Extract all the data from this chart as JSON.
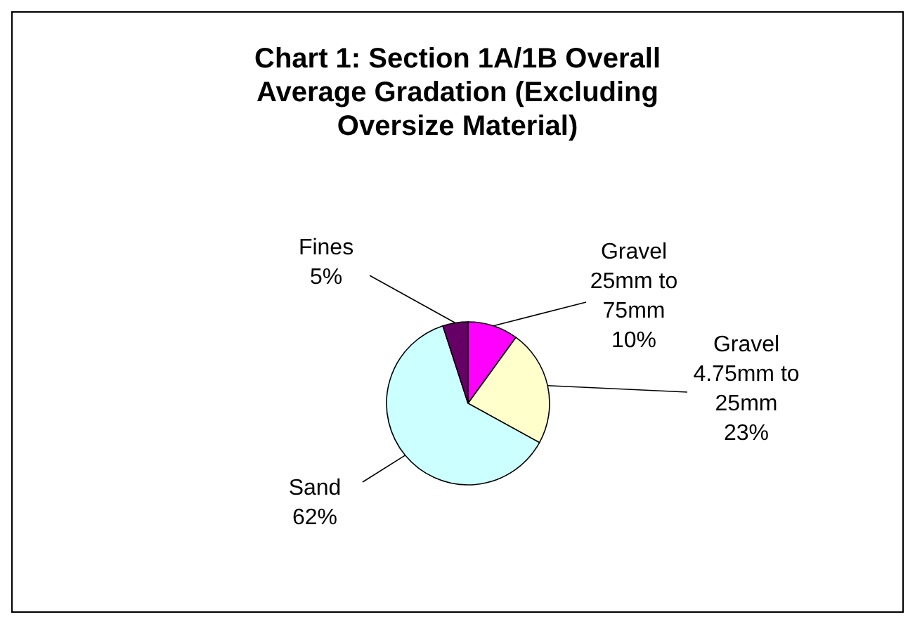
{
  "chart_data": {
    "type": "pie",
    "title": "Chart 1: Section 1A/1B Overall Average Gradation (Excluding Oversize Material)",
    "categories": [
      "Gravel 25mm to 75mm",
      "Gravel 4.75mm to 25mm",
      "Sand",
      "Fines"
    ],
    "values": [
      10,
      23,
      62,
      5
    ],
    "colors": [
      "#ff00ff",
      "#ffffcc",
      "#ccffff",
      "#660066"
    ],
    "value_labels": [
      "10%",
      "23%",
      "62%",
      "5%"
    ]
  }
}
